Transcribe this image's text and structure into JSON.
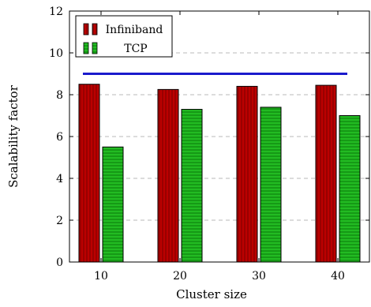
{
  "chart_data": {
    "type": "bar",
    "categories": [
      "10",
      "20",
      "30",
      "40"
    ],
    "series": [
      {
        "name": "Infiniband",
        "values": [
          8.5,
          8.25,
          8.4,
          8.45
        ],
        "color": "#bb0000",
        "stripe": "vertical"
      },
      {
        "name": "TCP",
        "values": [
          5.5,
          7.3,
          7.4,
          7.0
        ],
        "color": "#22bb22",
        "stripe": "horizontal"
      }
    ],
    "reference_line": {
      "value": 9,
      "color": "#1a1acc"
    },
    "xlabel": "Cluster size",
    "ylabel": "Scalability factor",
    "ylim": [
      0,
      12
    ],
    "yticks": [
      0,
      2,
      4,
      6,
      8,
      10,
      12
    ],
    "grid": "horizontal dashed",
    "legend_position": "top-left"
  }
}
